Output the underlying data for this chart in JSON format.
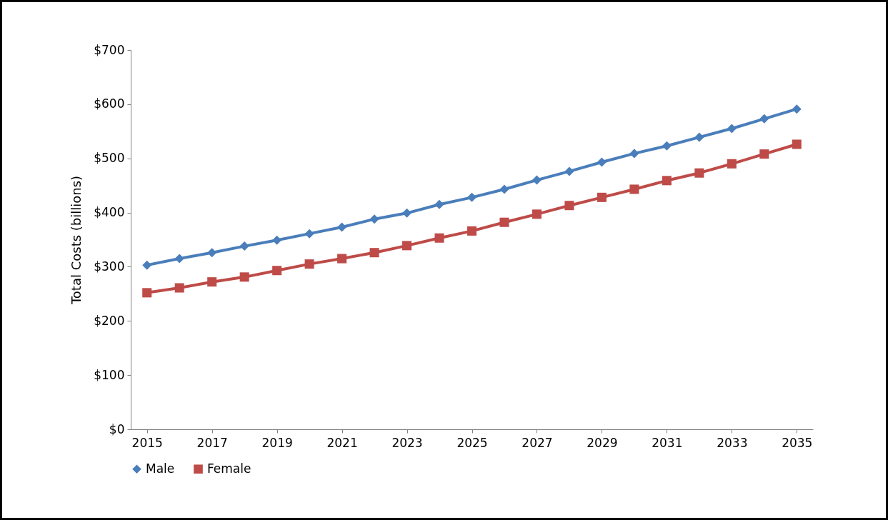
{
  "chart_data": {
    "type": "line",
    "ylabel": "Total Costs (billions)",
    "x": [
      2015,
      2016,
      2017,
      2018,
      2019,
      2020,
      2021,
      2022,
      2023,
      2024,
      2025,
      2026,
      2027,
      2028,
      2029,
      2030,
      2031,
      2032,
      2033,
      2034,
      2035
    ],
    "xlim": [
      2014.5,
      2035.5
    ],
    "xticks": [
      2015,
      2017,
      2019,
      2021,
      2023,
      2025,
      2027,
      2029,
      2031,
      2033,
      2035
    ],
    "ylim": [
      0,
      700
    ],
    "yticks": [
      {
        "value": 0,
        "label": "$0"
      },
      {
        "value": 100,
        "label": "$100"
      },
      {
        "value": 200,
        "label": "$200"
      },
      {
        "value": 300,
        "label": "$300"
      },
      {
        "value": 400,
        "label": "$400"
      },
      {
        "value": 500,
        "label": "$500"
      },
      {
        "value": 600,
        "label": "$600"
      },
      {
        "value": 700,
        "label": "$700"
      }
    ],
    "grid": false,
    "legend": "bottom",
    "line_style": "solid",
    "series": [
      {
        "name": "Male",
        "color": "#4a7ebb",
        "marker": "diamond",
        "values": [
          303,
          315,
          326,
          338,
          349,
          361,
          373,
          388,
          399,
          415,
          428,
          443,
          460,
          476,
          493,
          509,
          523,
          539,
          555,
          573,
          591
        ]
      },
      {
        "name": "Female",
        "color": "#be4b48",
        "marker": "square",
        "values": [
          252,
          261,
          272,
          281,
          293,
          305,
          315,
          326,
          339,
          353,
          366,
          382,
          397,
          413,
          428,
          443,
          459,
          473,
          490,
          508,
          526
        ]
      }
    ]
  }
}
